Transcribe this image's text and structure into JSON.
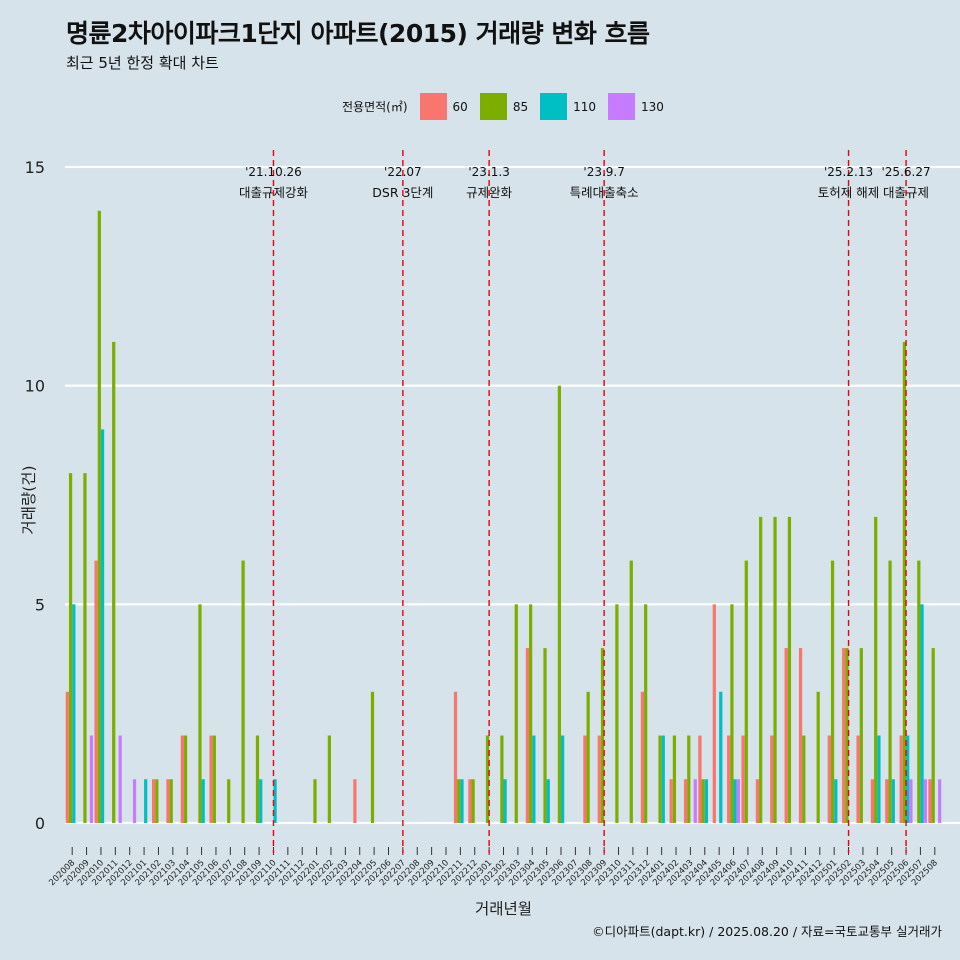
{
  "title": "명륜2차아이파크1단지 아파트(2015) 거래량 변화 흐름",
  "subtitle": "최근 5년 한정 확대 차트",
  "caption": "©디아파트(dapt.kr) / 2025.08.20 / 자료=국토교통부 실거래가",
  "colors": {
    "background": "#d6e3ea",
    "s60": "#f8766d",
    "s85": "#7cae00",
    "s110": "#00bfc4",
    "s130": "#c77cff",
    "event_line": "#e8000b"
  },
  "chart_data": {
    "type": "bar",
    "xlabel": "거래년월",
    "ylabel": "거래량(건)",
    "ylim": [
      0,
      15
    ],
    "yticks": [
      0,
      5,
      10,
      15
    ],
    "grid": true,
    "legend_title": "전용면적(㎡)",
    "legend_position": "top",
    "series": [
      {
        "name": "60",
        "color": "#f8766d",
        "points": [
          [
            "202008",
            3
          ],
          [
            "202010",
            6
          ],
          [
            "202102",
            1
          ],
          [
            "202103",
            1
          ],
          [
            "202104",
            2
          ],
          [
            "202106",
            2
          ],
          [
            "202204",
            1
          ],
          [
            "202211",
            3
          ],
          [
            "202212",
            1
          ],
          [
            "202304",
            4
          ],
          [
            "202308",
            2
          ],
          [
            "202309",
            2
          ],
          [
            "202312",
            3
          ],
          [
            "202402",
            1
          ],
          [
            "202403",
            1
          ],
          [
            "202404",
            2
          ],
          [
            "202405",
            5
          ],
          [
            "202406",
            2
          ],
          [
            "202407",
            2
          ],
          [
            "202408",
            1
          ],
          [
            "202409",
            2
          ],
          [
            "202410",
            4
          ],
          [
            "202411",
            4
          ],
          [
            "202501",
            2
          ],
          [
            "202502",
            4
          ],
          [
            "202503",
            2
          ],
          [
            "202504",
            1
          ],
          [
            "202505",
            1
          ],
          [
            "202506",
            2
          ],
          [
            "202508",
            1
          ]
        ]
      },
      {
        "name": "85",
        "color": "#7cae00",
        "points": [
          [
            "202008",
            8
          ],
          [
            "202009",
            8
          ],
          [
            "202010",
            14
          ],
          [
            "202011",
            11
          ],
          [
            "202102",
            1
          ],
          [
            "202103",
            1
          ],
          [
            "202104",
            2
          ],
          [
            "202105",
            5
          ],
          [
            "202106",
            2
          ],
          [
            "202107",
            1
          ],
          [
            "202108",
            6
          ],
          [
            "202109",
            2
          ],
          [
            "202201",
            1
          ],
          [
            "202202",
            2
          ],
          [
            "202205",
            3
          ],
          [
            "202211",
            1
          ],
          [
            "202212",
            1
          ],
          [
            "202301",
            2
          ],
          [
            "202302",
            2
          ],
          [
            "202303",
            5
          ],
          [
            "202304",
            5
          ],
          [
            "202305",
            4
          ],
          [
            "202306",
            10
          ],
          [
            "202308",
            3
          ],
          [
            "202309",
            4
          ],
          [
            "202310",
            5
          ],
          [
            "202311",
            6
          ],
          [
            "202312",
            5
          ],
          [
            "202401",
            2
          ],
          [
            "202402",
            2
          ],
          [
            "202403",
            2
          ],
          [
            "202404",
            1
          ],
          [
            "202406",
            5
          ],
          [
            "202407",
            6
          ],
          [
            "202408",
            7
          ],
          [
            "202409",
            7
          ],
          [
            "202410",
            7
          ],
          [
            "202411",
            2
          ],
          [
            "202412",
            3
          ],
          [
            "202501",
            6
          ],
          [
            "202502",
            4
          ],
          [
            "202503",
            4
          ],
          [
            "202504",
            7
          ],
          [
            "202505",
            6
          ],
          [
            "202506",
            11
          ],
          [
            "202507",
            6
          ],
          [
            "202508",
            4
          ]
        ]
      },
      {
        "name": "110",
        "color": "#00bfc4",
        "points": [
          [
            "202008",
            5
          ],
          [
            "202010",
            9
          ],
          [
            "202101",
            1
          ],
          [
            "202105",
            1
          ],
          [
            "202109",
            1
          ],
          [
            "202110",
            1
          ],
          [
            "202211",
            1
          ],
          [
            "202302",
            1
          ],
          [
            "202304",
            2
          ],
          [
            "202305",
            1
          ],
          [
            "202306",
            2
          ],
          [
            "202401",
            2
          ],
          [
            "202404",
            1
          ],
          [
            "202405",
            3
          ],
          [
            "202406",
            1
          ],
          [
            "202501",
            1
          ],
          [
            "202504",
            2
          ],
          [
            "202505",
            1
          ],
          [
            "202506",
            2
          ],
          [
            "202507",
            5
          ]
        ]
      },
      {
        "name": "130",
        "color": "#c77cff",
        "points": [
          [
            "202009",
            2
          ],
          [
            "202011",
            2
          ],
          [
            "202012",
            1
          ],
          [
            "202403",
            1
          ],
          [
            "202406",
            1
          ],
          [
            "202506",
            1
          ],
          [
            "202507",
            1
          ],
          [
            "202508",
            1
          ]
        ]
      }
    ],
    "categories": [
      "202008",
      "202009",
      "202010",
      "202011",
      "202012",
      "202101",
      "202102",
      "202103",
      "202104",
      "202105",
      "202106",
      "202107",
      "202108",
      "202109",
      "202110",
      "202111",
      "202112",
      "202201",
      "202202",
      "202203",
      "202204",
      "202205",
      "202206",
      "202207",
      "202208",
      "202209",
      "202210",
      "202211",
      "202212",
      "202301",
      "202302",
      "202303",
      "202304",
      "202305",
      "202306",
      "202307",
      "202308",
      "202309",
      "202310",
      "202311",
      "202312",
      "202401",
      "202402",
      "202403",
      "202404",
      "202405",
      "202406",
      "202407",
      "202408",
      "202409",
      "202410",
      "202411",
      "202412",
      "202501",
      "202502",
      "202503",
      "202504",
      "202505",
      "202506",
      "202507",
      "202508"
    ],
    "annotations": [
      {
        "month": "202110",
        "date": "'21.10.26",
        "text": "대출규제강화"
      },
      {
        "month": "202207",
        "date": "'22.07",
        "text": "DSR 3단계"
      },
      {
        "month": "202301",
        "date": "'23.1.3",
        "text": "규제완화"
      },
      {
        "month": "202309",
        "date": "'23.9.7",
        "text": "특례대출축소"
      },
      {
        "month": "202502",
        "date": "'25.2.13",
        "text": "토허제 해제"
      },
      {
        "month": "202506",
        "date": "'25.6.27",
        "text": "대출규제"
      }
    ]
  }
}
